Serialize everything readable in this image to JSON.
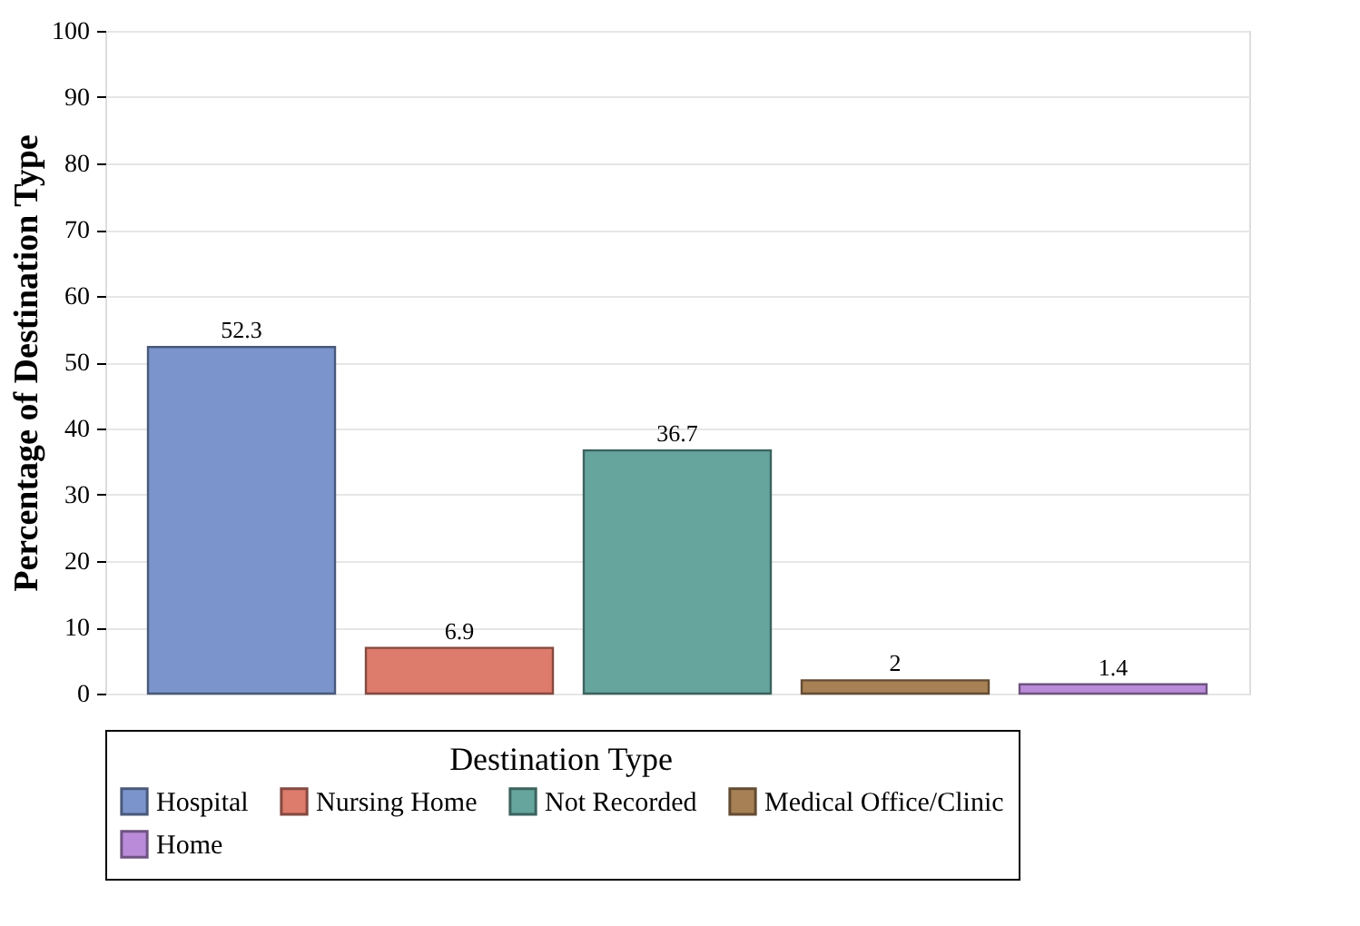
{
  "chart_data": {
    "type": "bar",
    "ylabel": "Percentage of Destination Type",
    "legend_title": "Destination Type",
    "categories": [
      null,
      null,
      null,
      null,
      null
    ],
    "series": [
      {
        "name": "Hospital",
        "color": "#7b95cc",
        "values": [
          52.3,
          null,
          null,
          null,
          null
        ]
      },
      {
        "name": "Nursing Home",
        "color": "#dd7b6c",
        "values": [
          null,
          6.9,
          null,
          null,
          null
        ]
      },
      {
        "name": "Not Recorded",
        "color": "#65a59d",
        "values": [
          null,
          null,
          36.7,
          null,
          null
        ]
      },
      {
        "name": "Medical Office/Clinic",
        "color": "#a78055",
        "values": [
          null,
          null,
          null,
          2,
          null
        ]
      },
      {
        "name": "Home",
        "color": "#b98bd8",
        "values": [
          null,
          null,
          null,
          null,
          1.4
        ]
      }
    ],
    "ylim": [
      0,
      100
    ],
    "yticks": [
      0,
      10,
      20,
      30,
      40,
      50,
      60,
      70,
      80,
      90,
      100
    ],
    "grid": "y",
    "legend": "bottom",
    "data_labels": true
  }
}
